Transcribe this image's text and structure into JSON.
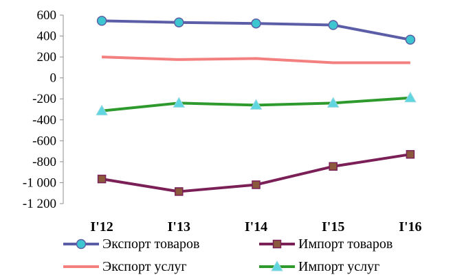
{
  "chart_data": {
    "type": "line",
    "categories": [
      "I'12",
      "I'13",
      "I'14",
      "I'15",
      "I'16"
    ],
    "ylim": [
      -1200,
      600
    ],
    "yticks": [
      600,
      400,
      200,
      0,
      -200,
      -400,
      -600,
      -800,
      -1000,
      -1200
    ],
    "ytick_labels": [
      "600",
      "400",
      "200",
      "0",
      "-200",
      "-400",
      "-600",
      "-800",
      "-1 000",
      "-1 200"
    ],
    "grid": false,
    "legend_position": "bottom",
    "series": [
      {
        "name": "Экспорт товаров",
        "values": [
          545,
          530,
          520,
          505,
          365
        ],
        "color": "#5b5ea6",
        "marker": "circle",
        "marker_fill": "#3ec6d0"
      },
      {
        "name": "Импорт товаров",
        "values": [
          -965,
          -1085,
          -1020,
          -845,
          -730
        ],
        "color": "#7b1f57",
        "marker": "square",
        "marker_fill": "#8b5a3c"
      },
      {
        "name": "Экспорт услуг",
        "values": [
          200,
          175,
          185,
          145,
          145
        ],
        "color": "#f47f7f",
        "marker": "none",
        "marker_fill": ""
      },
      {
        "name": "Импорт услуг",
        "values": [
          -315,
          -240,
          -260,
          -240,
          -190
        ],
        "color": "#2e9a2e",
        "marker": "triangle",
        "marker_fill": "#5fd6e0"
      }
    ]
  }
}
